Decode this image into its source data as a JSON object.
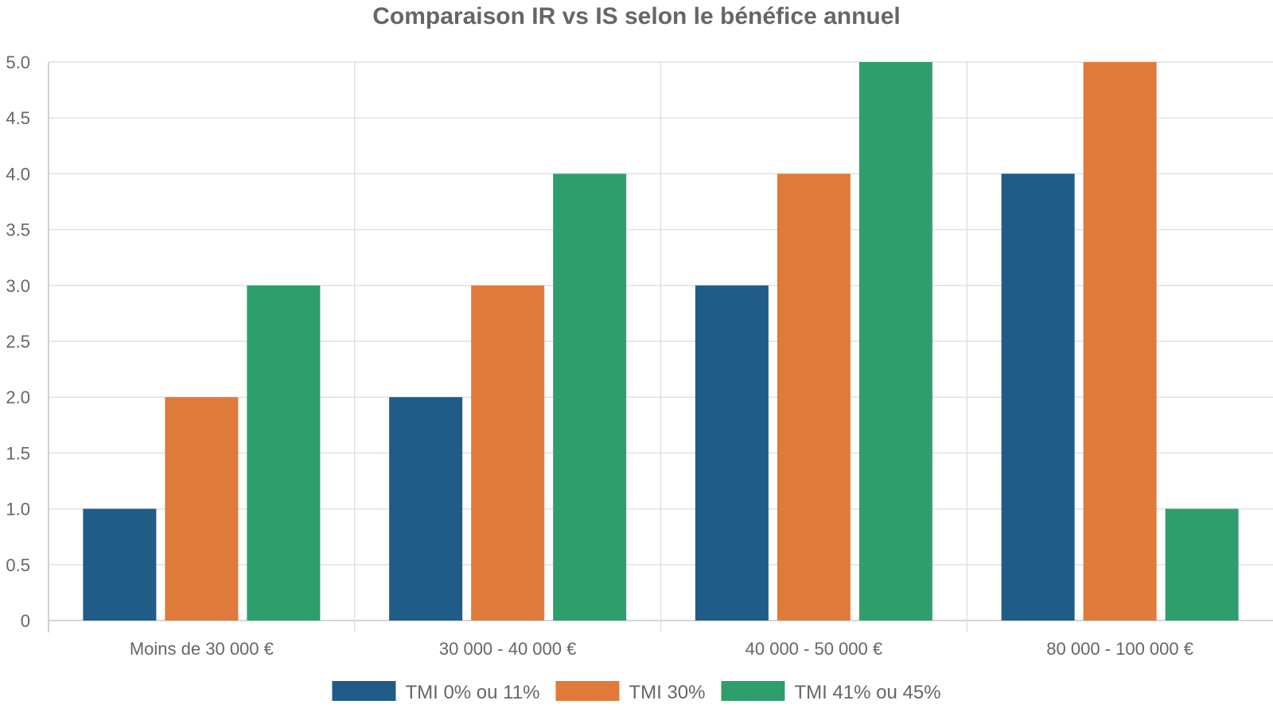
{
  "chart_data": {
    "type": "bar",
    "title": "Comparaison IR vs IS selon le bénéfice annuel",
    "xlabel": "",
    "ylabel": "",
    "categories": [
      "Moins de 30 000 €",
      "30 000 - 40 000 €",
      "40 000 - 50 000 €",
      "80 000 - 100 000 €"
    ],
    "series": [
      {
        "name": "TMI 0% ou 11%",
        "color": "#1f5c87",
        "values": [
          1,
          2,
          3,
          4
        ]
      },
      {
        "name": "TMI 30%",
        "color": "#e07a3a",
        "values": [
          2,
          3,
          4,
          5
        ]
      },
      {
        "name": "TMI 41% ou 45%",
        "color": "#2e9e6c",
        "values": [
          3,
          4,
          5,
          1
        ]
      }
    ],
    "ylim": [
      0,
      5
    ],
    "yticks": [
      "0",
      "0.5",
      "1.0",
      "1.5",
      "2.0",
      "2.5",
      "3.0",
      "3.5",
      "4.0",
      "4.5",
      "5.0"
    ],
    "grid": true,
    "legend_position": "bottom"
  }
}
